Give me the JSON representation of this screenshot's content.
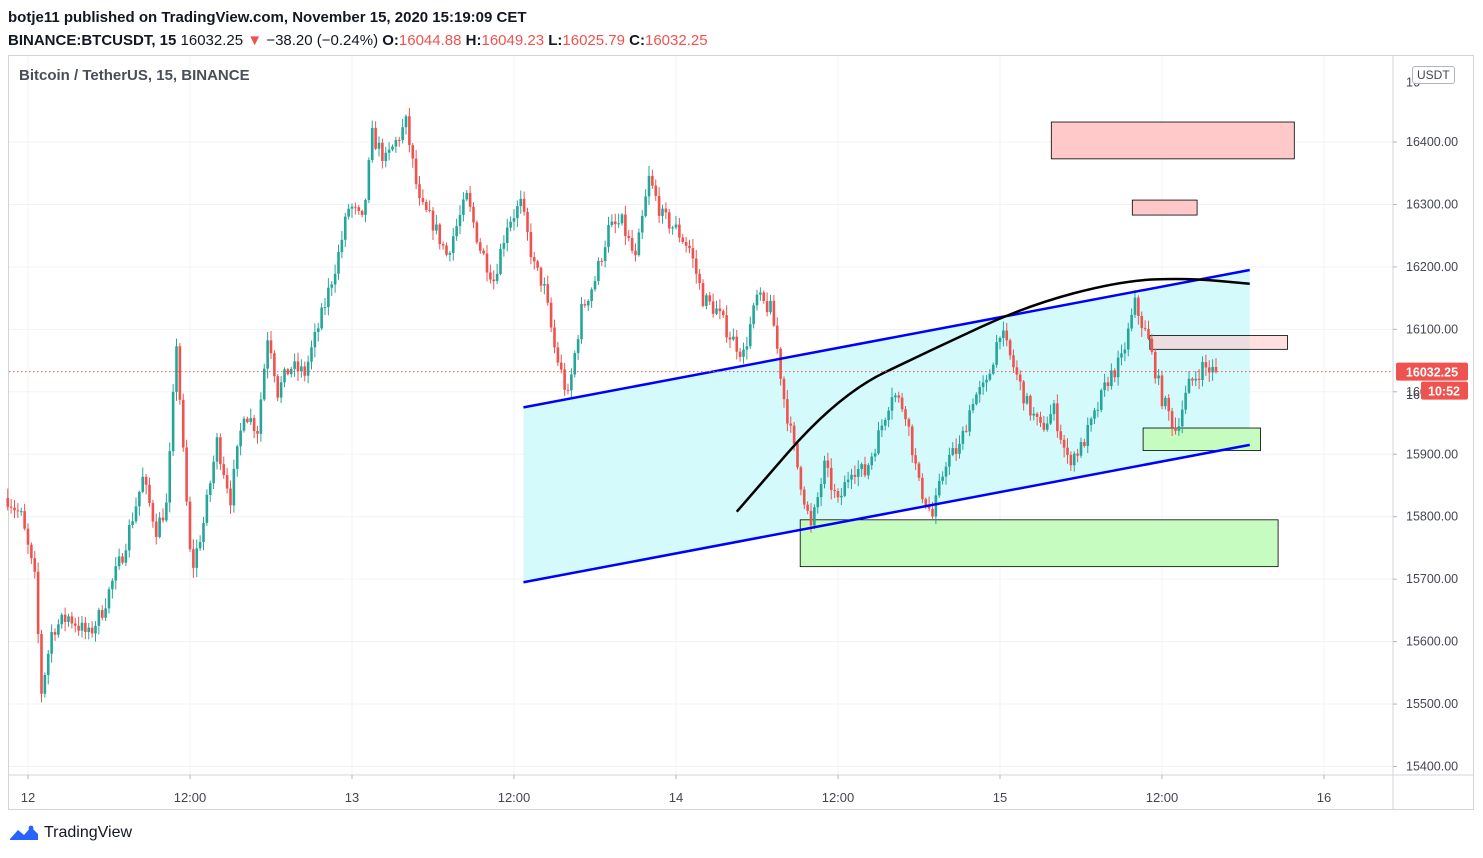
{
  "header": {
    "publisher_line": "botje11 published on TradingView.com, November 15, 2020 15:19:09 CET",
    "symbol": "BINANCE:BTCUSDT, 15",
    "last": "16032.25",
    "change_arrow": "▼",
    "change": "−38.20 (−0.24%)",
    "o_label": "O:",
    "o_value": "16044.88",
    "h_label": "H:",
    "h_value": "16049.23",
    "l_label": "L:",
    "l_value": "16025.79",
    "c_label": "C:",
    "c_value": "16032.25"
  },
  "chart_title": "Bitcoin / TetherUS, 15, BINANCE",
  "unit": "USDT",
  "brand": {
    "name": "TradingView"
  },
  "colors": {
    "up": "#26a69a",
    "down": "#ef5350",
    "channel_line": "#0000ff",
    "channel_fill": "#d4fafc",
    "resistance_fill": "#ffc9c9",
    "support_fill": "#c6fcc0",
    "arc": "#000000",
    "grid": "#f0f3fa",
    "price_line": "#ef5350"
  },
  "chart_data": {
    "type": "candlestick",
    "title": "Bitcoin / TetherUS, 15, BINANCE",
    "ylim": [
      15380,
      16500
    ],
    "y_ticks": [
      15400,
      15500,
      15600,
      15700,
      15800,
      15900,
      16000,
      16100,
      16200,
      16300,
      16400
    ],
    "y_tick_labels": [
      "15400.00",
      "15500.00",
      "15600.00",
      "15700.00",
      "15800.00",
      "15900.00",
      "16000.00",
      "16100.00",
      "16200.00",
      "16300.00",
      "16400.00"
    ],
    "x_range_hours": [
      -2.3,
      95
    ],
    "x_ticks": [
      {
        "t": 0,
        "label": "12"
      },
      {
        "t": 12,
        "label": "12:00"
      },
      {
        "t": 24,
        "label": "13"
      },
      {
        "t": 36,
        "label": "12:00"
      },
      {
        "t": 48,
        "label": "14"
      },
      {
        "t": 60,
        "label": "12:00"
      },
      {
        "t": 72,
        "label": "15"
      },
      {
        "t": 84,
        "label": "12:00"
      },
      {
        "t": 96,
        "label": "16"
      }
    ],
    "last_price": 16032.25,
    "last_price_label": "16032.25",
    "countdown_label": "10:52",
    "hidden_axis_label": "16",
    "price_path": [
      [
        -1.5,
        15830
      ],
      [
        -0.5,
        15800
      ],
      [
        0.5,
        15700
      ],
      [
        1,
        15520
      ],
      [
        1.8,
        15620
      ],
      [
        3,
        15640
      ],
      [
        4.5,
        15610
      ],
      [
        5.5,
        15650
      ],
      [
        7,
        15740
      ],
      [
        8.5,
        15860
      ],
      [
        9.5,
        15780
      ],
      [
        10.3,
        15820
      ],
      [
        11,
        16080
      ],
      [
        11.5,
        15900
      ],
      [
        12.1,
        15710
      ],
      [
        13,
        15790
      ],
      [
        14,
        15920
      ],
      [
        15,
        15830
      ],
      [
        16,
        15970
      ],
      [
        17,
        15940
      ],
      [
        17.8,
        16100
      ],
      [
        18.5,
        16000
      ],
      [
        19.4,
        16040
      ],
      [
        20.5,
        16030
      ],
      [
        22,
        16140
      ],
      [
        23,
        16220
      ],
      [
        23.8,
        16300
      ],
      [
        24.8,
        16270
      ],
      [
        25.5,
        16410
      ],
      [
        26.5,
        16370
      ],
      [
        28,
        16430
      ],
      [
        29,
        16300
      ],
      [
        30,
        16270
      ],
      [
        31,
        16220
      ],
      [
        32.5,
        16310
      ],
      [
        33.5,
        16230
      ],
      [
        34.5,
        16180
      ],
      [
        35.5,
        16270
      ],
      [
        36.5,
        16300
      ],
      [
        37.5,
        16200
      ],
      [
        38.2,
        16170
      ],
      [
        39,
        16070
      ],
      [
        40,
        15990
      ],
      [
        41,
        16130
      ],
      [
        42,
        16180
      ],
      [
        43,
        16260
      ],
      [
        44,
        16270
      ],
      [
        45,
        16210
      ],
      [
        46,
        16340
      ],
      [
        47,
        16280
      ],
      [
        48,
        16260
      ],
      [
        49,
        16230
      ],
      [
        50,
        16150
      ],
      [
        51,
        16130
      ],
      [
        52,
        16090
      ],
      [
        53,
        16060
      ],
      [
        54,
        16150
      ],
      [
        55.1,
        16130
      ],
      [
        56,
        15990
      ],
      [
        57,
        15880
      ],
      [
        58,
        15780
      ],
      [
        59,
        15880
      ],
      [
        60,
        15820
      ],
      [
        61,
        15880
      ],
      [
        62,
        15870
      ],
      [
        63,
        15930
      ],
      [
        64,
        16000
      ],
      [
        65,
        15970
      ],
      [
        66,
        15850
      ],
      [
        67,
        15800
      ],
      [
        68,
        15890
      ],
      [
        69,
        15910
      ],
      [
        70,
        15990
      ],
      [
        71,
        16010
      ],
      [
        72,
        16100
      ],
      [
        73,
        16040
      ],
      [
        74,
        15980
      ],
      [
        75,
        15940
      ],
      [
        76,
        15970
      ],
      [
        77,
        15890
      ],
      [
        78,
        15910
      ],
      [
        79,
        15960
      ],
      [
        80,
        16020
      ],
      [
        81,
        16050
      ],
      [
        82,
        16140
      ],
      [
        83,
        16080
      ],
      [
        84,
        15990
      ],
      [
        85,
        15940
      ],
      [
        86,
        16010
      ],
      [
        87,
        16040
      ],
      [
        88,
        16032
      ]
    ],
    "drawings": {
      "channel": {
        "upper": [
          [
            36.7,
            15975
          ],
          [
            90.5,
            16195
          ]
        ],
        "lower": [
          [
            36.7,
            15695
          ],
          [
            90.5,
            15915
          ]
        ]
      },
      "arc": [
        [
          52.5,
          15808
        ],
        [
          60,
          15995
        ],
        [
          67,
          16068
        ],
        [
          74,
          16138
        ],
        [
          81,
          16178
        ],
        [
          86,
          16182
        ],
        [
          90.5,
          16173
        ]
      ],
      "zones": [
        {
          "kind": "resistance",
          "t0": 75.8,
          "t1": 93.8,
          "p0": 16373,
          "p1": 16432
        },
        {
          "kind": "resistance",
          "t0": 81.8,
          "t1": 86.6,
          "p0": 16283,
          "p1": 16307
        },
        {
          "kind": "resistance_faded",
          "t0": 83.1,
          "t1": 93.3,
          "p0": 16068,
          "p1": 16090
        },
        {
          "kind": "support",
          "t0": 82.6,
          "t1": 91.3,
          "p0": 15906,
          "p1": 15942
        },
        {
          "kind": "support",
          "t0": 57.2,
          "t1": 92.6,
          "p0": 15720,
          "p1": 15795
        }
      ]
    }
  }
}
